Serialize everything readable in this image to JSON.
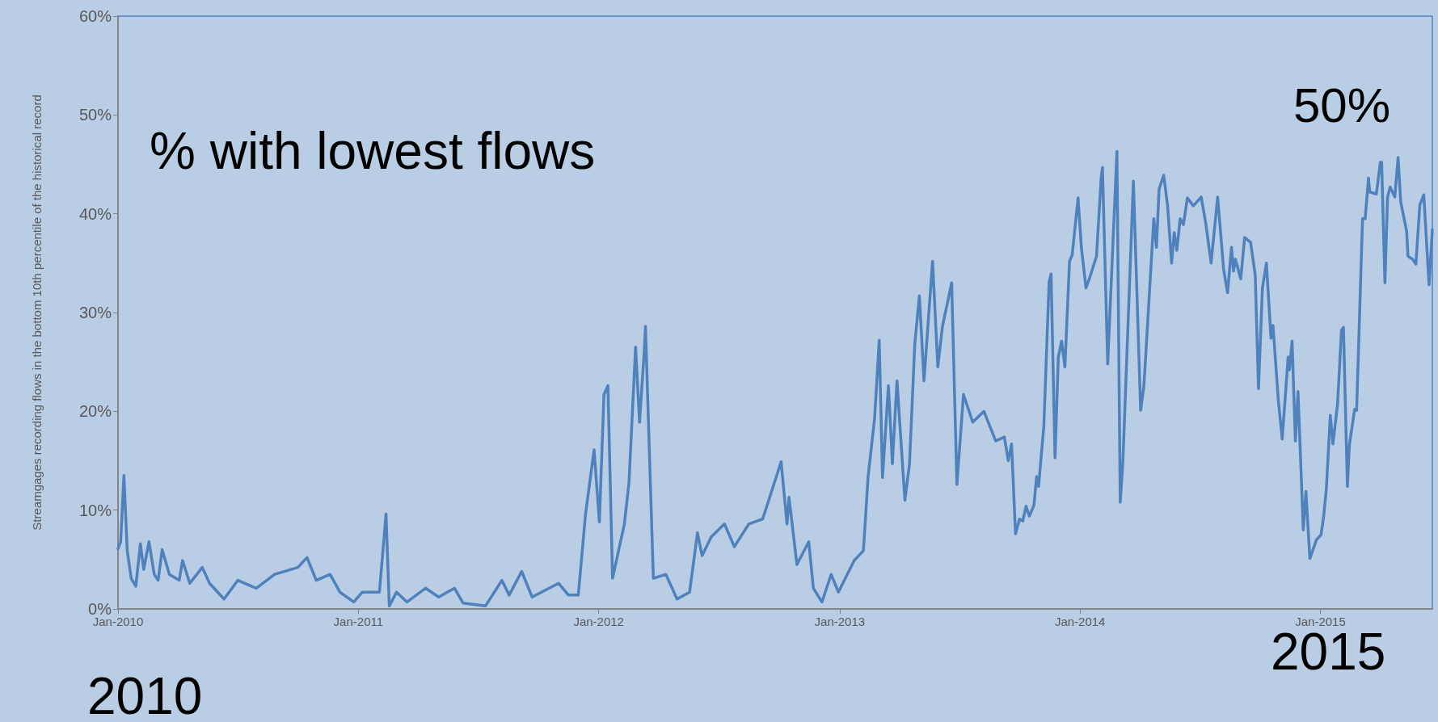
{
  "chart_data": {
    "type": "line",
    "ylabel": "Streamgages recording flows in the bottom 10th percentile of the historical record",
    "annotations": [
      "% with lowest flows",
      "50%",
      "2015",
      "2010"
    ],
    "xlim": [
      "2010-01-01",
      "2015-06-20"
    ],
    "xticks": [
      {
        "value": "2010-01-01",
        "label": "Jan-2010"
      },
      {
        "value": "2011-01-01",
        "label": "Jan-2011"
      },
      {
        "value": "2012-01-01",
        "label": "Jan-2012"
      },
      {
        "value": "2013-01-01",
        "label": "Jan-2013"
      },
      {
        "value": "2014-01-01",
        "label": "Jan-2014"
      },
      {
        "value": "2015-01-01",
        "label": "Jan-2015"
      }
    ],
    "ylim": [
      0,
      60
    ],
    "yticks": [
      {
        "value": 0,
        "label": "0%"
      },
      {
        "value": 10,
        "label": "10%"
      },
      {
        "value": 20,
        "label": "20%"
      },
      {
        "value": 30,
        "label": "30%"
      },
      {
        "value": 40,
        "label": "40%"
      },
      {
        "value": 50,
        "label": "50%"
      },
      {
        "value": 60,
        "label": "60%"
      }
    ],
    "grid": false,
    "marker": "none",
    "line_style": "solid",
    "series": [
      {
        "color": "#4f81bd",
        "x": [
          "2010-01-01",
          "2010-01-05",
          "2010-01-10",
          "2010-01-15",
          "2010-01-21",
          "2010-01-28",
          "2010-02-04",
          "2010-02-09",
          "2010-02-17",
          "2010-02-25",
          "2010-03-03",
          "2010-03-09",
          "2010-03-20",
          "2010-04-04",
          "2010-04-09",
          "2010-04-20",
          "2010-05-09",
          "2010-05-20",
          "2010-06-11",
          "2010-07-02",
          "2010-07-30",
          "2010-08-27",
          "2010-10-01",
          "2010-10-15",
          "2010-10-29",
          "2010-11-19",
          "2010-12-04",
          "2010-12-25",
          "2011-01-07",
          "2011-02-02",
          "2011-02-12",
          "2011-02-17",
          "2011-02-28",
          "2011-03-16",
          "2011-04-13",
          "2011-05-03",
          "2011-05-27",
          "2011-06-09",
          "2011-07-13",
          "2011-08-07",
          "2011-08-18",
          "2011-09-06",
          "2011-09-22",
          "2011-11-01",
          "2011-11-16",
          "2011-12-01",
          "2011-12-12",
          "2011-12-25",
          "2012-01-02",
          "2012-01-09",
          "2012-01-15",
          "2012-01-22",
          "2012-02-09",
          "2012-02-16",
          "2012-02-26",
          "2012-03-03",
          "2012-03-10",
          "2012-03-12",
          "2012-03-24",
          "2012-04-12",
          "2012-04-29",
          "2012-05-18",
          "2012-05-30",
          "2012-06-06",
          "2012-06-20",
          "2012-07-10",
          "2012-07-25",
          "2012-08-16",
          "2012-09-06",
          "2012-10-04",
          "2012-10-13",
          "2012-10-16",
          "2012-10-28",
          "2012-11-15",
          "2012-11-22",
          "2012-12-05",
          "2012-12-19",
          "2012-12-30",
          "2013-01-23",
          "2013-02-06",
          "2013-02-13",
          "2013-02-23",
          "2013-03-02",
          "2013-03-07",
          "2013-03-16",
          "2013-03-22",
          "2013-03-29",
          "2013-04-10",
          "2013-04-17",
          "2013-04-25",
          "2013-05-02",
          "2013-05-09",
          "2013-05-22",
          "2013-05-30",
          "2013-06-06",
          "2013-06-20",
          "2013-06-28",
          "2013-07-08",
          "2013-07-22",
          "2013-08-08",
          "2013-08-26",
          "2013-09-08",
          "2013-09-14",
          "2013-09-19",
          "2013-09-25",
          "2013-10-01",
          "2013-10-06",
          "2013-10-11",
          "2013-10-16",
          "2013-10-23",
          "2013-10-27",
          "2013-10-30",
          "2013-11-07",
          "2013-11-15",
          "2013-11-18",
          "2013-11-24",
          "2013-11-29",
          "2013-12-04",
          "2013-12-09",
          "2013-12-16",
          "2013-12-20",
          "2013-12-29",
          "2014-01-03",
          "2014-01-10",
          "2014-01-15",
          "2014-01-26",
          "2014-02-02",
          "2014-02-04",
          "2014-02-12",
          "2014-02-26",
          "2014-03-03",
          "2014-03-07",
          "2014-03-23",
          "2014-04-03",
          "2014-04-08",
          "2014-04-23",
          "2014-04-27",
          "2014-05-01",
          "2014-05-08",
          "2014-05-14",
          "2014-05-20",
          "2014-05-24",
          "2014-05-28",
          "2014-06-02",
          "2014-06-07",
          "2014-06-13",
          "2014-06-22",
          "2014-07-04",
          "2014-07-11",
          "2014-07-19",
          "2014-07-29",
          "2014-08-07",
          "2014-08-13",
          "2014-08-19",
          "2014-08-22",
          "2014-08-25",
          "2014-09-02",
          "2014-09-08",
          "2014-09-17",
          "2014-09-24",
          "2014-09-29",
          "2014-10-05",
          "2014-10-11",
          "2014-10-18",
          "2014-10-21",
          "2014-10-29",
          "2014-11-04",
          "2014-11-13",
          "2014-11-15",
          "2014-11-19",
          "2014-11-24",
          "2014-11-28",
          "2014-12-06",
          "2014-12-10",
          "2014-12-16",
          "2014-12-26",
          "2015-01-02",
          "2015-01-06",
          "2015-01-10",
          "2015-01-16",
          "2015-01-20",
          "2015-01-27",
          "2015-02-02",
          "2015-02-05",
          "2015-02-11",
          "2015-02-14",
          "2015-02-22",
          "2015-02-25",
          "2015-03-01",
          "2015-03-06",
          "2015-03-10",
          "2015-03-15",
          "2015-03-17",
          "2015-03-27",
          "2015-04-02",
          "2015-04-04",
          "2015-04-09",
          "2015-04-13",
          "2015-04-17",
          "2015-04-24",
          "2015-04-29",
          "2015-05-03",
          "2015-05-12",
          "2015-05-14",
          "2015-05-21",
          "2015-05-26",
          "2015-06-01",
          "2015-06-07",
          "2015-06-15",
          "2015-06-20"
        ],
        "values": [
          6.1,
          6.8,
          13.5,
          5.9,
          3.1,
          2.3,
          6.6,
          4.0,
          6.8,
          3.5,
          2.9,
          6.0,
          3.5,
          2.9,
          4.9,
          2.6,
          4.2,
          2.6,
          1.0,
          2.9,
          2.1,
          3.5,
          4.2,
          5.2,
          2.9,
          3.5,
          1.7,
          0.7,
          1.7,
          1.7,
          9.6,
          0.3,
          1.7,
          0.7,
          2.1,
          1.2,
          2.1,
          0.6,
          0.3,
          2.9,
          1.4,
          3.8,
          1.2,
          2.6,
          1.4,
          1.4,
          9.6,
          16.1,
          8.8,
          21.7,
          22.6,
          3.1,
          8.6,
          12.8,
          26.5,
          18.9,
          25.9,
          28.6,
          3.1,
          3.5,
          1.0,
          1.7,
          7.7,
          5.4,
          7.3,
          8.6,
          6.3,
          8.6,
          9.1,
          14.9,
          8.6,
          11.3,
          4.5,
          6.8,
          2.1,
          0.7,
          3.5,
          1.7,
          4.9,
          5.9,
          13.3,
          19.3,
          27.2,
          13.3,
          22.6,
          14.7,
          23.1,
          11.0,
          14.7,
          26.8,
          31.7,
          23.1,
          35.2,
          24.5,
          28.6,
          33.0,
          12.6,
          21.7,
          18.9,
          20.0,
          17.0,
          17.4,
          15.0,
          16.7,
          7.6,
          9.1,
          8.9,
          10.4,
          9.4,
          10.5,
          13.4,
          12.4,
          18.5,
          33.1,
          33.9,
          15.3,
          25.5,
          27.1,
          24.5,
          35.2,
          35.8,
          41.6,
          36.6,
          32.5,
          33.4,
          35.7,
          43.6,
          44.7,
          24.8,
          46.3,
          10.8,
          14.8,
          43.3,
          20.1,
          22.6,
          39.5,
          36.6,
          42.5,
          43.9,
          40.8,
          35.0,
          38.1,
          36.3,
          39.5,
          38.9,
          41.6,
          40.8,
          41.7,
          39.0,
          35.0,
          41.7,
          34.4,
          32.0,
          36.6,
          34.2,
          35.4,
          33.4,
          37.6,
          37.1,
          33.8,
          22.3,
          32.5,
          35.0,
          27.4,
          28.7,
          21.2,
          17.2,
          25.5,
          24.2,
          27.1,
          17.0,
          22.0,
          8.0,
          11.9,
          5.1,
          7.0,
          7.5,
          9.4,
          12.1,
          19.6,
          16.7,
          20.7,
          28.2,
          28.5,
          12.4,
          16.6,
          20.2,
          20.1,
          28.7,
          39.5,
          39.5,
          43.6,
          42.2,
          42.0,
          45.2,
          45.2,
          33.0,
          41.7,
          42.7,
          41.7,
          45.7,
          41.2,
          38.2,
          35.7,
          35.4,
          34.9,
          40.9,
          41.9,
          32.8,
          38.4
        ]
      }
    ]
  }
}
